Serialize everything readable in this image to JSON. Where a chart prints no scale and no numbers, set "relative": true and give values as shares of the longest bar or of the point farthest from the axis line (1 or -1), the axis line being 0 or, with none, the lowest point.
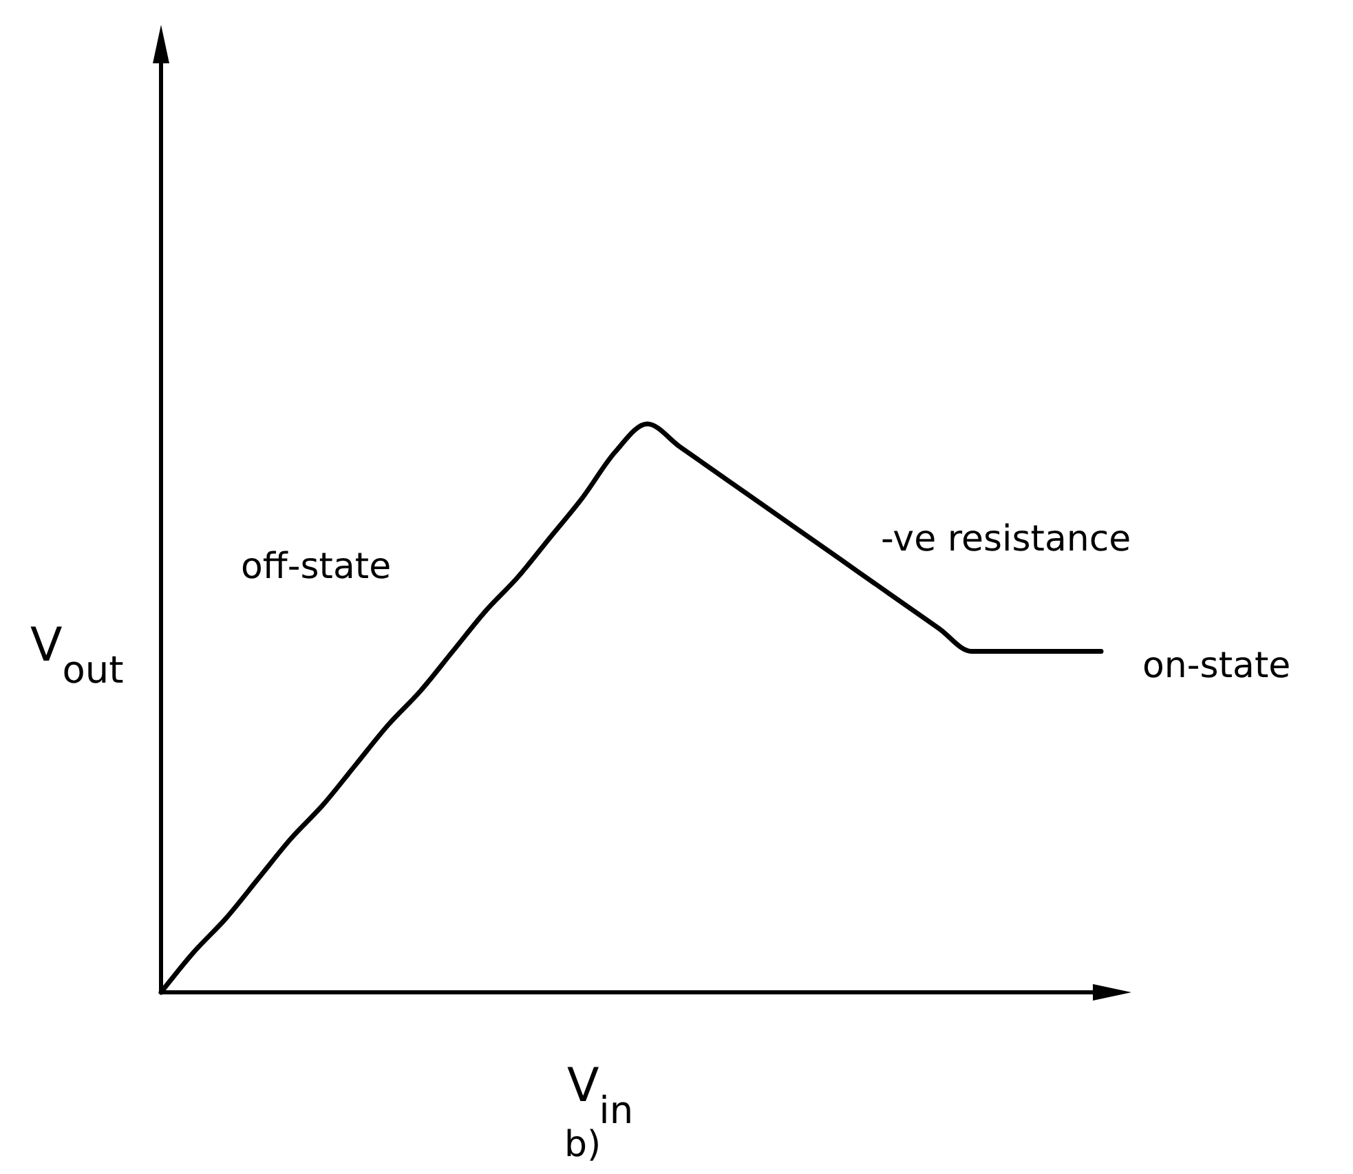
{
  "chart_data": {
    "type": "line",
    "relative": true,
    "xlabel": "V$_{in}$",
    "ylabel": "V$_{out}$",
    "categories": [
      null,
      null,
      null,
      null,
      null,
      null,
      null,
      null,
      null,
      null,
      null,
      null,
      null,
      null,
      null,
      null,
      null,
      null,
      null,
      null,
      null,
      null,
      null,
      null,
      null,
      null,
      null,
      null,
      null,
      null
    ],
    "series": [
      {
        "color": "#000000",
        "values": [
          0,
          0.07,
          0.13,
          0.2,
          0.27,
          0.33,
          0.4,
          0.47,
          0.53,
          0.6,
          0.67,
          0.73,
          0.8,
          0.87,
          0.95,
          1,
          0.96,
          0.92,
          0.88,
          0.84,
          0.8,
          0.76,
          0.72,
          0.68,
          0.64,
          0.6,
          0.6,
          0.6,
          0.6,
          0.6
        ]
      }
    ],
    "annotations": [
      "off-state",
      "-ve resistance",
      "on-state",
      "b)"
    ]
  }
}
